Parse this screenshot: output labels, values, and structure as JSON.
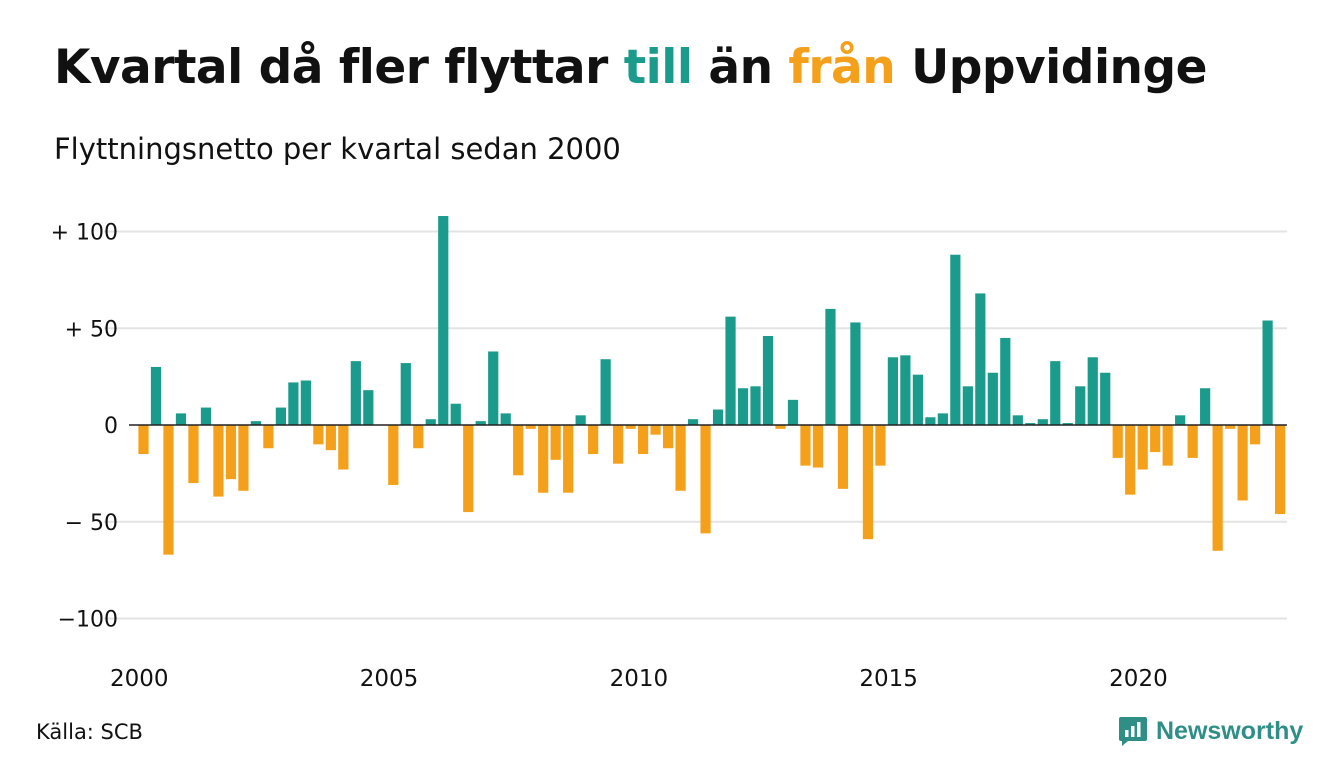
{
  "title": {
    "before": "Kvartal då fler flyttar ",
    "till": "till",
    "middle": " än ",
    "fran": "från",
    "after": " Uppvidinge"
  },
  "subtitle": "Flyttningsnetto per kvartal sedan 2000",
  "source": "Källa: SCB",
  "logo_text": "Newsworthy",
  "colors": {
    "positive": "#1a9b8b",
    "negative": "#f5a01a",
    "grid": "#e3e3e3",
    "zero_line": "#222222",
    "logo": "#2f8f86"
  },
  "chart_data": {
    "type": "bar",
    "x_start": "2000 Q1",
    "ylim": [
      -100,
      110
    ],
    "grid": true,
    "y_ticks": [
      {
        "value": 100,
        "label": "+ 100"
      },
      {
        "value": 50,
        "label": "+  50"
      },
      {
        "value": 0,
        "label": "0"
      },
      {
        "value": -50,
        "label": "− 50"
      },
      {
        "value": -100,
        "label": "−100"
      }
    ],
    "x_ticks": [
      {
        "year": 2000,
        "label": "2000"
      },
      {
        "year": 2005,
        "label": "2005"
      },
      {
        "year": 2010,
        "label": "2010"
      },
      {
        "year": 2015,
        "label": "2015"
      },
      {
        "year": 2020,
        "label": "2020"
      }
    ],
    "values": [
      -15,
      30,
      -67,
      6,
      -30,
      9,
      -37,
      -28,
      -34,
      2,
      -12,
      9,
      22,
      23,
      -10,
      -13,
      -23,
      33,
      18,
      0,
      -31,
      32,
      -12,
      3,
      108,
      11,
      -45,
      2,
      38,
      6,
      -26,
      -2,
      -35,
      -18,
      -35,
      5,
      -15,
      34,
      -20,
      -2,
      -15,
      -5,
      -12,
      -34,
      3,
      -56,
      8,
      56,
      19,
      20,
      46,
      -2,
      13,
      -21,
      -22,
      60,
      -33,
      53,
      -59,
      -21,
      35,
      36,
      26,
      4,
      6,
      88,
      20,
      68,
      27,
      45,
      5,
      1,
      3,
      33,
      1,
      20,
      35,
      27,
      -17,
      -36,
      -23,
      -14,
      -21,
      5,
      -17,
      19,
      -65,
      -2,
      -39,
      -10,
      54,
      -46
    ]
  }
}
